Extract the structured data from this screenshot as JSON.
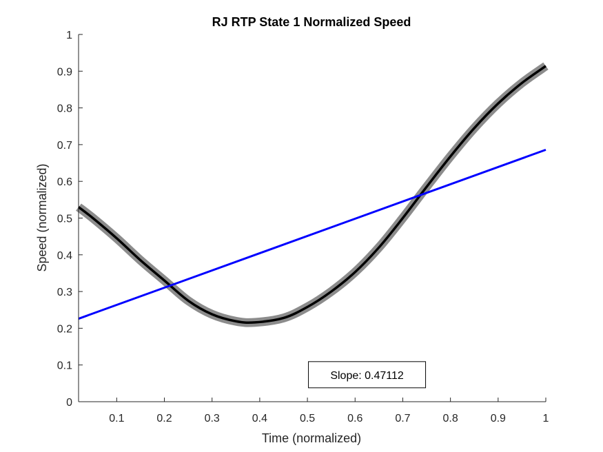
{
  "chart_data": {
    "type": "line",
    "title": "RJ  RTP State 1 Normalized Speed",
    "xlabel": "Time (normalized)",
    "ylabel": "Speed (normalized)",
    "xlim": [
      0.02,
      1.0
    ],
    "ylim": [
      0,
      1
    ],
    "xticks": [
      0.1,
      0.2,
      0.3,
      0.4,
      0.5,
      0.6,
      0.7,
      0.8,
      0.9,
      1
    ],
    "xtick_labels": [
      "0.1",
      "0.2",
      "0.3",
      "0.4",
      "0.5",
      "0.6",
      "0.7",
      "0.8",
      "0.9",
      "1"
    ],
    "yticks": [
      0,
      0.1,
      0.2,
      0.3,
      0.4,
      0.5,
      0.6,
      0.7,
      0.8,
      0.9,
      1
    ],
    "ytick_labels": [
      "0",
      "0.1",
      "0.2",
      "0.3",
      "0.4",
      "0.5",
      "0.6",
      "0.7",
      "0.8",
      "0.9",
      "1"
    ],
    "grid": false,
    "series": [
      {
        "role": "speed-curve",
        "color": "#000000",
        "band_color": "#8c8c8c",
        "band_halfwidth": 0.012,
        "x": [
          0.02,
          0.05,
          0.1,
          0.15,
          0.2,
          0.25,
          0.3,
          0.35,
          0.39,
          0.45,
          0.5,
          0.55,
          0.6,
          0.65,
          0.7,
          0.75,
          0.8,
          0.85,
          0.9,
          0.95,
          1.0
        ],
        "y": [
          0.53,
          0.5,
          0.445,
          0.385,
          0.33,
          0.275,
          0.238,
          0.219,
          0.216,
          0.228,
          0.258,
          0.3,
          0.353,
          0.42,
          0.5,
          0.585,
          0.668,
          0.745,
          0.812,
          0.868,
          0.914
        ]
      },
      {
        "role": "linear-fit",
        "color": "#0000ff",
        "x": [
          0.02,
          1.0
        ],
        "y": [
          0.226,
          0.686
        ]
      }
    ],
    "annotations": [
      {
        "text": "Slope: 0.47112",
        "x": 0.625,
        "y": 0.0735
      }
    ]
  }
}
